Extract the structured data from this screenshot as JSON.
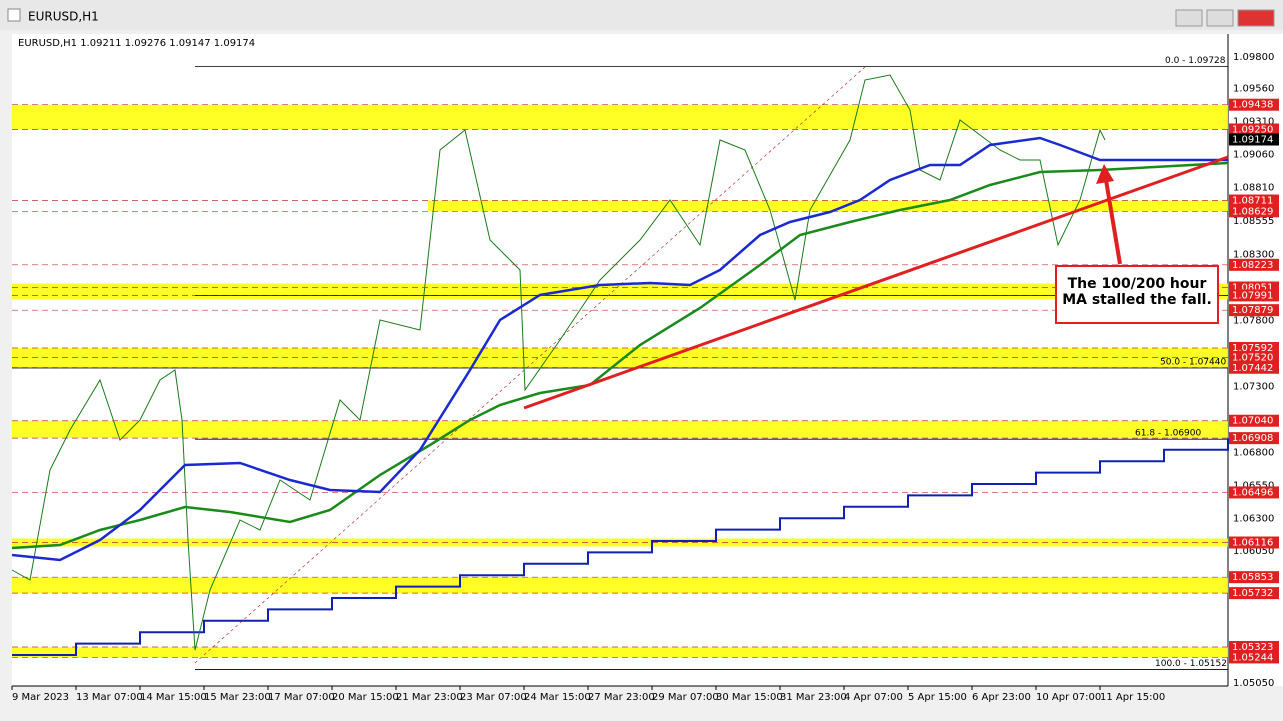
{
  "window": {
    "title": "EURUSD,H1"
  },
  "header": {
    "text": "EURUSD,H1  1.09211 1.09276 1.09147 1.09174"
  },
  "price_axis": {
    "ticks": [
      "1.09800",
      "1.09560",
      "1.09310",
      "1.09060",
      "1.08810",
      "1.08555",
      "1.08300",
      "1.07800",
      "1.07300",
      "1.06800",
      "1.06550",
      "1.06300",
      "1.06050",
      "1.05050"
    ]
  },
  "levels": [
    "1.09438",
    "1.09250",
    "1.09174",
    "1.08711",
    "1.08629",
    "1.08223",
    "1.08051",
    "1.07991",
    "1.07879",
    "1.07592",
    "1.07520",
    "1.07442",
    "1.07040",
    "1.06908",
    "1.06496",
    "1.06116",
    "1.05853",
    "1.05732",
    "1.05323",
    "1.05244"
  ],
  "fib_labels": [
    "0.0 - 1.09728",
    "50.0 - 1.07440",
    "61.8 - 1.06900",
    "100.0 - 1.05152"
  ],
  "dates": [
    "9 Mar 2023",
    "13 Mar 07:00",
    "14 Mar 15:00",
    "15 Mar 23:00",
    "17 Mar 07:00",
    "20 Mar 15:00",
    "21 Mar 23:00",
    "23 Mar 07:00",
    "24 Mar 15:00",
    "27 Mar 23:00",
    "29 Mar 07:00",
    "30 Mar 15:00",
    "31 Mar 23:00",
    "4 Apr 07:00",
    "5 Apr 15:00",
    "6 Apr 23:00",
    "10 Apr 07:00",
    "11 Apr 15:00"
  ],
  "annotation": {
    "text": "The 100/200 hour MA stalled the fall."
  }
}
